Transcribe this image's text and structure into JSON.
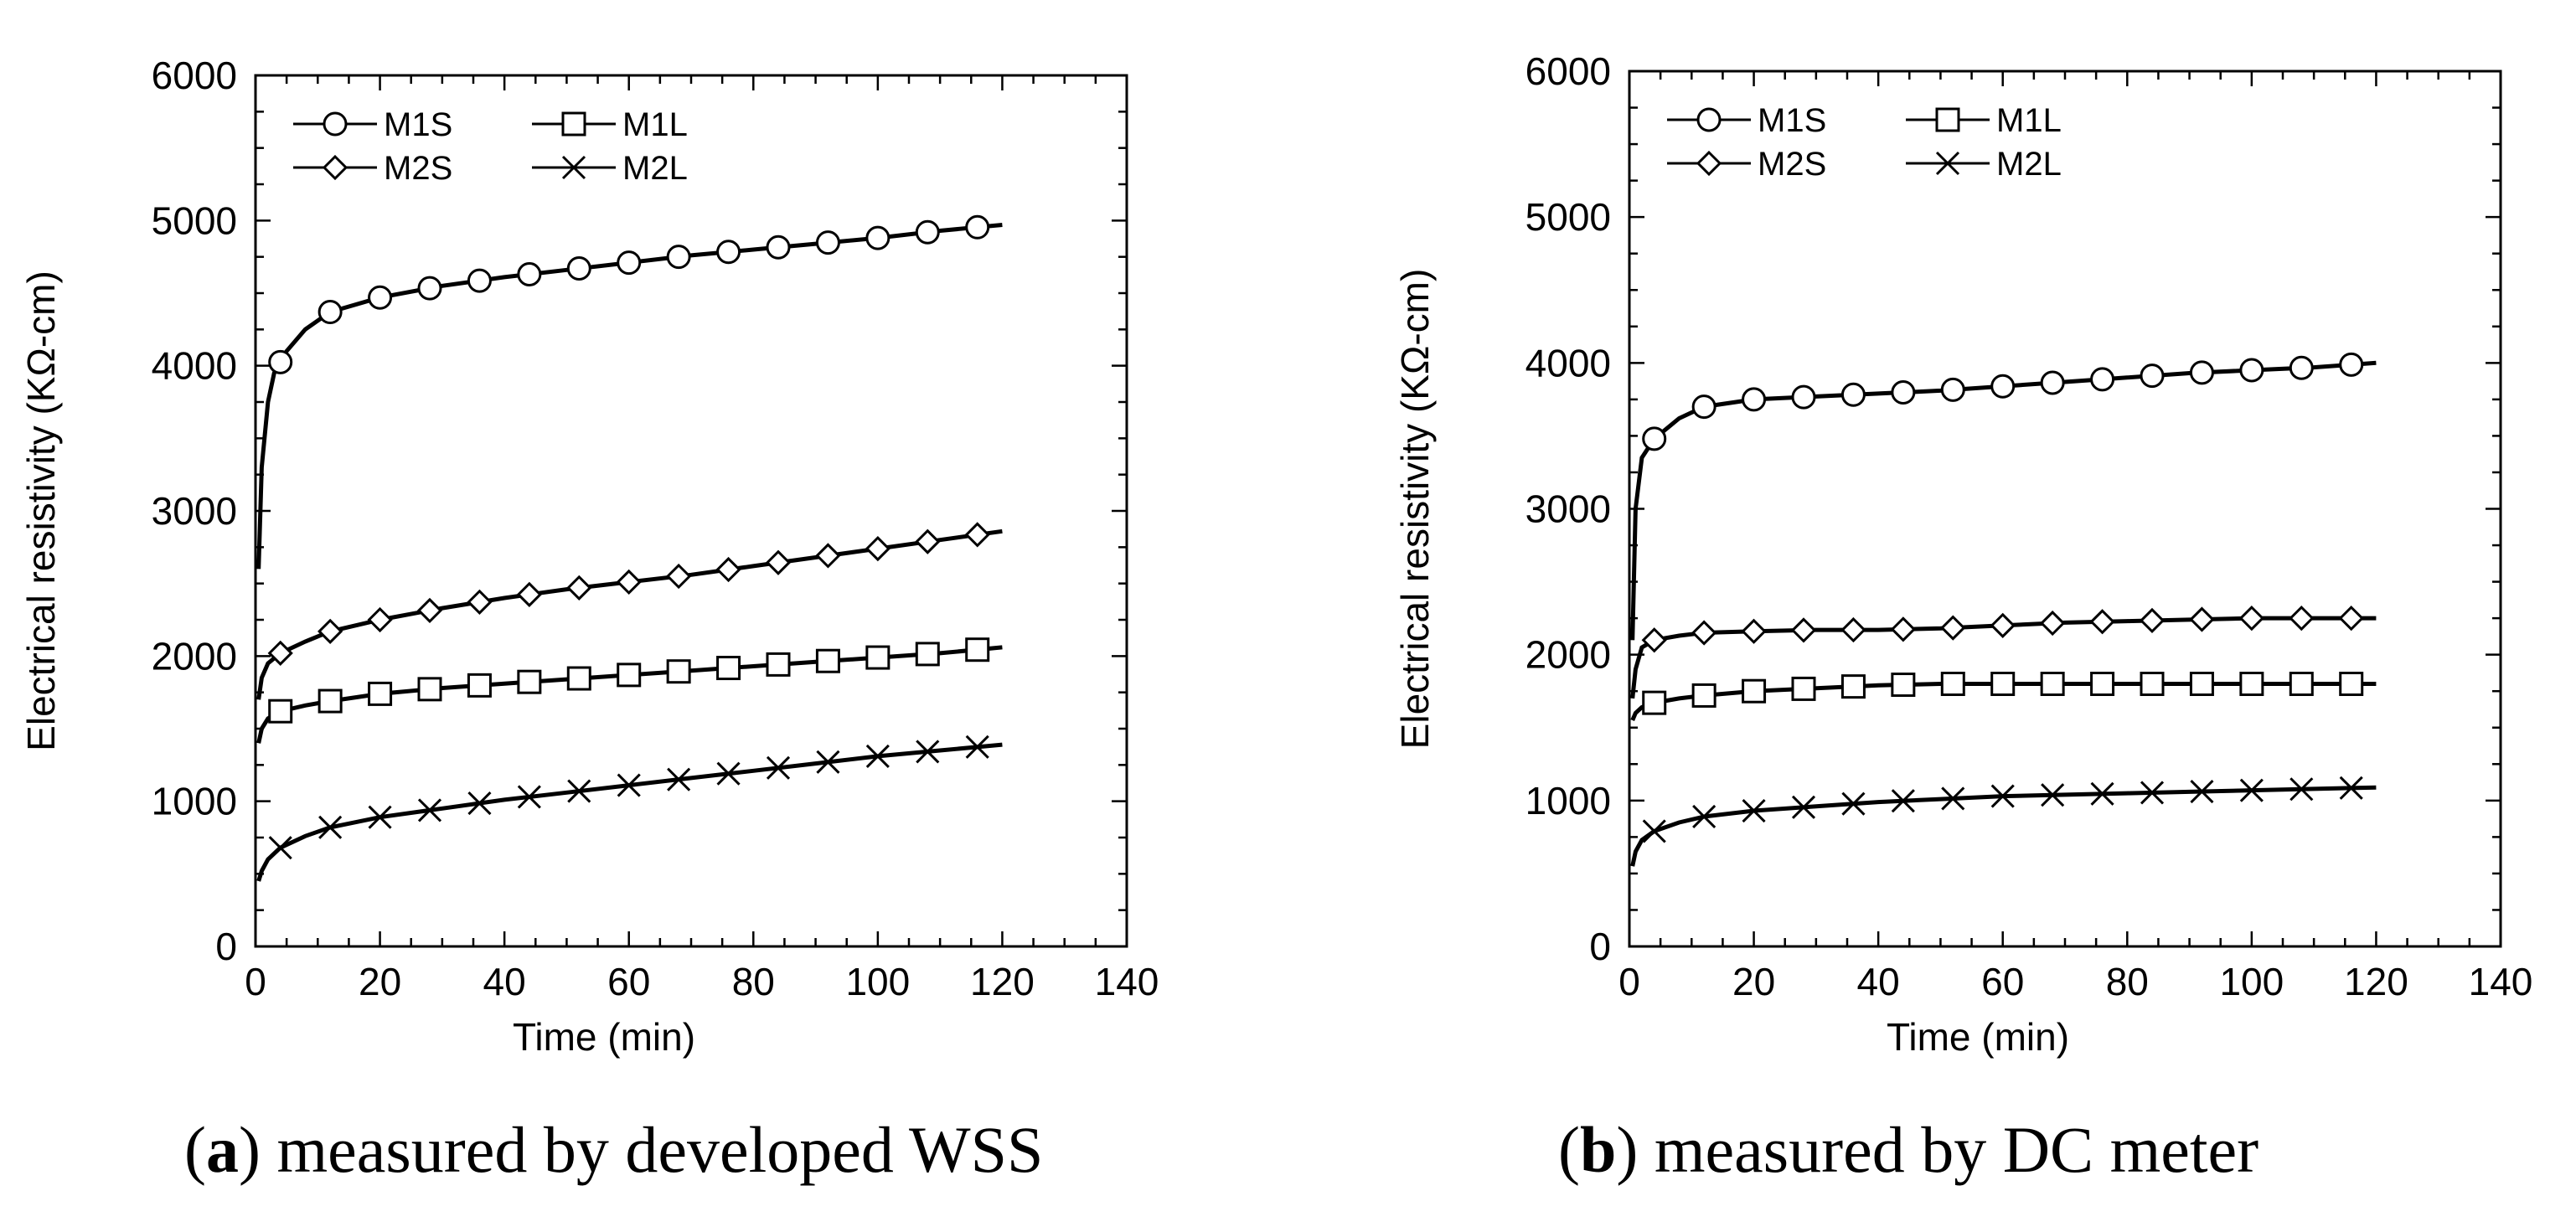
{
  "chart_data": [
    {
      "type": "line",
      "panel_letter": "a",
      "caption": "measured by developed WSS",
      "xlabel": "Time (min)",
      "ylabel": "Electrical resistivity (KΩ-cm)",
      "xlim": [
        0,
        140
      ],
      "ylim": [
        0,
        6000
      ],
      "xticks": [
        0,
        20,
        40,
        60,
        80,
        100,
        120,
        140
      ],
      "yticks": [
        0,
        1000,
        2000,
        3000,
        4000,
        5000,
        6000
      ],
      "legend_position": "top-left",
      "series": [
        {
          "name": "M1S",
          "marker": "circle",
          "x": [
            0.5,
            1,
            2,
            3,
            5,
            8,
            12,
            20,
            30,
            40,
            50,
            60,
            70,
            80,
            90,
            100,
            110,
            120
          ],
          "y": [
            2600,
            3300,
            3750,
            3950,
            4100,
            4250,
            4370,
            4470,
            4550,
            4610,
            4660,
            4710,
            4760,
            4800,
            4840,
            4880,
            4930,
            4970
          ]
        },
        {
          "name": "M1L",
          "marker": "square",
          "x": [
            0.5,
            1,
            2,
            4,
            8,
            12,
            20,
            30,
            40,
            50,
            60,
            70,
            80,
            90,
            100,
            110,
            120
          ],
          "y": [
            1400,
            1500,
            1570,
            1620,
            1660,
            1690,
            1740,
            1780,
            1810,
            1840,
            1870,
            1900,
            1930,
            1960,
            1990,
            2020,
            2060
          ]
        },
        {
          "name": "M2S",
          "marker": "diamond",
          "x": [
            0.5,
            1,
            2,
            4,
            8,
            12,
            20,
            30,
            40,
            50,
            60,
            70,
            80,
            90,
            100,
            110,
            120
          ],
          "y": [
            1700,
            1850,
            1950,
            2020,
            2100,
            2170,
            2250,
            2330,
            2400,
            2460,
            2510,
            2560,
            2620,
            2680,
            2740,
            2800,
            2860
          ]
        },
        {
          "name": "M2L",
          "marker": "cross",
          "x": [
            0.5,
            1,
            2,
            4,
            8,
            12,
            20,
            30,
            40,
            50,
            60,
            70,
            80,
            90,
            100,
            110,
            120
          ],
          "y": [
            450,
            520,
            600,
            680,
            760,
            820,
            890,
            950,
            1010,
            1060,
            1110,
            1160,
            1210,
            1260,
            1310,
            1350,
            1390
          ]
        }
      ]
    },
    {
      "type": "line",
      "panel_letter": "b",
      "caption": "measured by DC meter",
      "xlabel": "Time (min)",
      "ylabel": "Electrical resistivity (KΩ-cm)",
      "xlim": [
        0,
        140
      ],
      "ylim": [
        0,
        6000
      ],
      "xticks": [
        0,
        20,
        40,
        60,
        80,
        100,
        120,
        140
      ],
      "yticks": [
        0,
        1000,
        2000,
        3000,
        4000,
        5000,
        6000
      ],
      "legend_position": "top-left",
      "series": [
        {
          "name": "M1S",
          "marker": "circle",
          "x": [
            0.5,
            1,
            2,
            4,
            8,
            12,
            20,
            30,
            40,
            50,
            60,
            70,
            80,
            90,
            100,
            110,
            120
          ],
          "y": [
            2100,
            3000,
            3350,
            3480,
            3620,
            3700,
            3750,
            3770,
            3790,
            3810,
            3840,
            3870,
            3900,
            3930,
            3950,
            3970,
            4000
          ]
        },
        {
          "name": "M1L",
          "marker": "square",
          "x": [
            0.5,
            1,
            2,
            4,
            8,
            12,
            20,
            30,
            40,
            50,
            60,
            70,
            80,
            90,
            100,
            110,
            120
          ],
          "y": [
            1550,
            1600,
            1640,
            1670,
            1700,
            1720,
            1750,
            1770,
            1790,
            1800,
            1800,
            1800,
            1800,
            1800,
            1800,
            1800,
            1800
          ]
        },
        {
          "name": "M2S",
          "marker": "diamond",
          "x": [
            0.5,
            1,
            2,
            4,
            8,
            12,
            20,
            30,
            40,
            50,
            60,
            70,
            80,
            90,
            100,
            110,
            120
          ],
          "y": [
            1700,
            1900,
            2050,
            2100,
            2130,
            2150,
            2160,
            2170,
            2170,
            2180,
            2200,
            2220,
            2230,
            2240,
            2250,
            2250,
            2250
          ]
        },
        {
          "name": "M2L",
          "marker": "cross",
          "x": [
            0.5,
            1,
            2,
            4,
            8,
            12,
            20,
            30,
            40,
            50,
            60,
            70,
            80,
            90,
            100,
            110,
            120
          ],
          "y": [
            550,
            650,
            730,
            790,
            850,
            890,
            930,
            960,
            990,
            1010,
            1030,
            1040,
            1050,
            1060,
            1070,
            1080,
            1090
          ]
        }
      ]
    }
  ]
}
